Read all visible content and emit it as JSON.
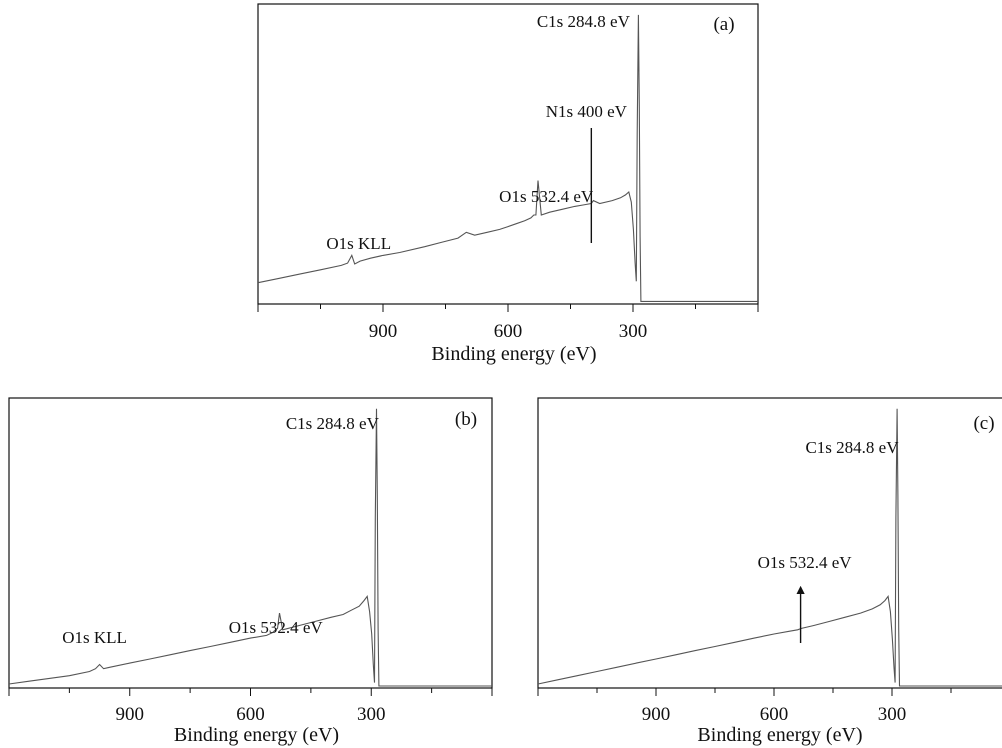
{
  "chart_data": [
    {
      "type": "line",
      "panel_label": "(a)",
      "xlabel": "Binding energy (eV)",
      "ylabel": "",
      "x_reversed": true,
      "xlim": [
        1200,
        0
      ],
      "ylim": [
        0,
        100
      ],
      "xticks": [
        900,
        600,
        300
      ],
      "tick_labels": [
        "900",
        "600",
        "300"
      ],
      "series": [
        {
          "x": [
            1200,
            1150,
            1100,
            1050,
            1000,
            985,
            975,
            968,
            955,
            930,
            900,
            860,
            800,
            760,
            720,
            700,
            680,
            650,
            620,
            600,
            580,
            560,
            545,
            538,
            533,
            528,
            520,
            500,
            470,
            440,
            420,
            400,
            395,
            380,
            350,
            330,
            318,
            310,
            304,
            299,
            295,
            292,
            290,
            287,
            285,
            283,
            281,
            278,
            270,
            250,
            200,
            150,
            100,
            50,
            0
          ],
          "y": [
            6,
            7.5,
            9,
            10.5,
            12,
            12.8,
            15.5,
            12.5,
            13.5,
            14.5,
            15.5,
            16.5,
            18.5,
            20,
            21.5,
            23.5,
            22.5,
            23.5,
            24.5,
            25.5,
            26.5,
            27.5,
            28.5,
            29.5,
            29.5,
            41.5,
            29.5,
            30.5,
            31.5,
            32.5,
            33,
            33.5,
            34.5,
            33.5,
            34.5,
            35.5,
            36.5,
            37.5,
            34,
            24.5,
            13,
            6.5,
            58,
            99,
            67,
            22,
            -0.5,
            -0.5,
            -0.5,
            -0.5,
            -0.5,
            -0.5,
            -0.5,
            -0.5,
            -0.5
          ]
        }
      ],
      "annotations": [
        {
          "text": "C1s 284.8 eV",
          "x": 284.8
        },
        {
          "text": "N1s 400 eV",
          "x": 400,
          "marker": "line"
        },
        {
          "text": "O1s 532.4 eV",
          "x": 532.4
        },
        {
          "text": "O1s KLL",
          "x": 975
        }
      ]
    },
    {
      "type": "line",
      "panel_label": "(b)",
      "xlabel": "Binding energy (eV)",
      "ylabel": "",
      "x_reversed": true,
      "xlim": [
        1200,
        0
      ],
      "ylim": [
        0,
        100
      ],
      "xticks": [
        900,
        600,
        300
      ],
      "tick_labels": [
        "900",
        "600",
        "300"
      ],
      "series": [
        {
          "x": [
            1200,
            1150,
            1100,
            1050,
            1000,
            985,
            975,
            965,
            950,
            900,
            850,
            800,
            750,
            700,
            650,
            600,
            560,
            545,
            538,
            533,
            528,
            520,
            480,
            440,
            400,
            370,
            350,
            330,
            318,
            310,
            304,
            299,
            295,
            292,
            290,
            287,
            285,
            283,
            281,
            278,
            260,
            200,
            150,
            100,
            50,
            0
          ],
          "y": [
            0,
            1,
            2,
            3,
            4.5,
            5.5,
            7,
            5.5,
            6,
            7.5,
            9,
            10.5,
            12,
            13.5,
            15,
            16.5,
            17.5,
            18.5,
            19.5,
            20,
            25.5,
            19.5,
            21,
            22.5,
            24,
            25,
            26.5,
            28,
            30,
            31.5,
            26,
            18,
            7,
            0.5,
            60,
            99,
            68,
            20,
            -2,
            -2,
            -2,
            -2,
            -2,
            -2,
            -2,
            -2
          ]
        }
      ],
      "annotations": [
        {
          "text": "C1s 284.8 eV",
          "x": 284.8
        },
        {
          "text": "O1s 532.4 eV",
          "x": 532.4
        },
        {
          "text": "O1s KLL",
          "x": 975
        }
      ]
    },
    {
      "type": "line",
      "panel_label": "(c)",
      "xlabel": "Binding energy (eV)",
      "ylabel": "",
      "x_reversed": true,
      "xlim": [
        1200,
        0
      ],
      "ylim": [
        0,
        100
      ],
      "xticks": [
        900,
        600,
        300
      ],
      "tick_labels": [
        "900",
        "600",
        "300"
      ],
      "series": [
        {
          "x": [
            1200,
            1150,
            1100,
            1050,
            1000,
            950,
            900,
            850,
            800,
            750,
            700,
            650,
            600,
            560,
            540,
            530,
            500,
            460,
            420,
            380,
            350,
            330,
            318,
            310,
            304,
            299,
            295,
            292,
            290,
            287,
            285,
            283,
            281,
            278,
            260,
            200,
            150,
            100,
            50,
            0
          ],
          "y": [
            0,
            1.5,
            3,
            4.5,
            6,
            7.5,
            9,
            10.5,
            12,
            13.5,
            15,
            16.5,
            18,
            19,
            19.5,
            20,
            21,
            22.5,
            24,
            25.5,
            27,
            28.5,
            30,
            31.5,
            26,
            16,
            6,
            0.5,
            60,
            99,
            68,
            20,
            -2,
            -2,
            -2,
            -2,
            -2,
            -2,
            -2,
            -2
          ]
        }
      ],
      "annotations": [
        {
          "text": "C1s 284.8 eV",
          "x": 284.8
        },
        {
          "text": "O1s 532.4 eV",
          "x": 532.4,
          "marker": "arrow"
        }
      ]
    }
  ]
}
